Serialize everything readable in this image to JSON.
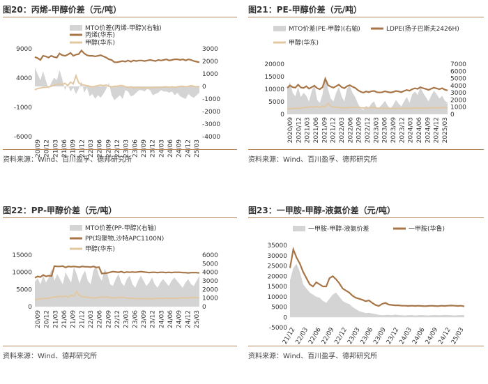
{
  "colors": {
    "bar": "#d4d4d4",
    "brown": "#a87547",
    "tan": "#e2c8a2",
    "rule": "#b5865a"
  },
  "chart_data": [
    {
      "type": "line",
      "title": "图20：丙烯-甲醇价差（元/吨）",
      "source": "资料来源：Wind、百川盈孚、德邦研究所",
      "legend": [
        "MTO价差(丙烯-甲醇)(右轴)",
        "丙烯(华东)",
        "甲醇(华东)"
      ],
      "x_ticks": [
        "20/09",
        "20/12",
        "21/03",
        "21/06",
        "21/09",
        "21/12",
        "22/03",
        "22/06",
        "22/09",
        "22/12",
        "23/03",
        "23/06",
        "23/09",
        "23/12",
        "24/03",
        "24/06",
        "24/09",
        "24/12",
        "25/03"
      ],
      "left_axis": {
        "ticks": [
          "9000",
          "4000",
          "-1000",
          "-6000"
        ],
        "min": -6000,
        "max": 9000
      },
      "right_axis": {
        "ticks": [
          "3000",
          "2000",
          "1000",
          "0",
          "-1000",
          "-2000",
          "-3000",
          "-4000"
        ],
        "min": -4000,
        "max": 3000
      },
      "series": [
        {
          "name": "MTO价差(丙烯-甲醇)(右轴)",
          "type": "area",
          "axis": "right",
          "values": [
            1500,
            1000,
            500,
            1200,
            500,
            -200,
            300,
            700,
            500,
            1300,
            600,
            -300,
            200,
            -400,
            -100,
            -600,
            -200,
            400,
            -500,
            -100,
            -800,
            -600,
            -1000,
            -700,
            -900,
            -600,
            -200,
            300,
            -700,
            -1100,
            -900,
            -700,
            -1000,
            -300,
            -400,
            -800,
            -700,
            -500,
            -300,
            -300,
            -400,
            -200,
            -300,
            -700,
            -600,
            -500,
            -300,
            -400,
            -400,
            -500,
            -400,
            -700,
            -500,
            -800,
            -900,
            -1000,
            -600,
            -800,
            -900,
            -700,
            -500
          ]
        },
        {
          "name": "丙烯(华东)",
          "type": "line",
          "axis": "left",
          "values": [
            7600,
            7400,
            7100,
            7800,
            7700,
            7500,
            7800,
            7600,
            7500,
            8200,
            7900,
            7800,
            8000,
            8300,
            7800,
            8000,
            8100,
            8700,
            8200,
            7900,
            7800,
            7800,
            7700,
            7800,
            7900,
            7700,
            7500,
            7200,
            7100,
            6700,
            6700,
            6800,
            6900,
            6800,
            7000,
            6800,
            7000,
            6900,
            7000,
            7000,
            6900,
            7000,
            7100,
            7000,
            6900,
            7100,
            7000,
            7100,
            7200,
            7000,
            7100,
            7200,
            7200,
            7100,
            7200,
            7000,
            7200,
            7100,
            6900,
            6800,
            6700
          ]
        },
        {
          "name": "甲醇(华东)",
          "type": "line",
          "axis": "left",
          "values": [
            2000,
            2200,
            2300,
            2400,
            2400,
            2500,
            2600,
            2800,
            2900,
            3000,
            2900,
            3100,
            2700,
            3300,
            3000,
            4400,
            3200,
            2900,
            2800,
            2700,
            2600,
            2500,
            2600,
            2700,
            2800,
            2700,
            2800,
            2600,
            2500,
            2600,
            2600,
            2700,
            2700,
            2500,
            2400,
            2500,
            2300,
            2400,
            2400,
            2300,
            2400,
            2300,
            2300,
            2400,
            2400,
            2400,
            2400,
            2500,
            2500,
            2400,
            2500,
            2400,
            2500,
            2600,
            2600,
            2500,
            2600,
            2700,
            2600,
            2500,
            2600
          ]
        }
      ]
    },
    {
      "type": "line",
      "title": "图21：PE-甲醇价差（元/吨）",
      "source": "资料来源：Wind、百川盈孚、德邦研究所",
      "legend": [
        "MTO价差(PE-甲醇)(右轴)",
        "LDPE(扬子巴斯夫2426H)",
        "甲醇(华东)"
      ],
      "x_ticks": [
        "2020/09",
        "2020/12",
        "2021/03",
        "2021/06",
        "2021/09",
        "2021/12",
        "2022/03",
        "2022/06",
        "2022/09",
        "2022/12",
        "2023/03",
        "2023/06",
        "2023/09",
        "2023/12",
        "2024/03",
        "2024/06",
        "2024/09",
        "2024/12",
        "2025/03"
      ],
      "left_axis": {
        "ticks": [
          "20000",
          "15000",
          "10000",
          "5000",
          "0"
        ],
        "min": 0,
        "max": 20000
      },
      "right_axis": {
        "ticks": [
          "7000",
          "6000",
          "5000",
          "4000",
          "3000",
          "2000",
          "1000",
          "0"
        ],
        "min": 0,
        "max": 7000
      },
      "series": [
        {
          "name": "MTO价差(PE-甲醇)(右轴)",
          "type": "area",
          "axis": "right",
          "values": [
            3500,
            4500,
            3000,
            2500,
            3800,
            2400,
            3000,
            2600,
            1800,
            3200,
            4200,
            2000,
            1600,
            2800,
            5200,
            3500,
            2200,
            1800,
            3000,
            3800,
            2500,
            1800,
            3600,
            4000,
            3000,
            2400,
            1500,
            800,
            600,
            1200,
            900,
            1500,
            1800,
            800,
            1000,
            1400,
            1900,
            1200,
            800,
            1300,
            2000,
            1500,
            1100,
            1800,
            2400,
            1600,
            2800,
            3200,
            2700,
            3800,
            3000,
            2400,
            1800,
            2600,
            3300,
            2800,
            2200,
            2600,
            1900,
            1600
          ]
        },
        {
          "name": "LDPE(扬子巴斯夫2426H)",
          "type": "line",
          "axis": "left",
          "values": [
            10500,
            11500,
            10800,
            10600,
            11800,
            10700,
            10500,
            11200,
            10200,
            10800,
            11400,
            10400,
            10000,
            10800,
            14200,
            11600,
            11000,
            10600,
            11200,
            11800,
            10800,
            10400,
            11200,
            11600,
            11000,
            10500,
            9600,
            9000,
            8600,
            9100,
            8800,
            9200,
            9300,
            8800,
            8700,
            8800,
            9200,
            8900,
            8700,
            8900,
            9300,
            9100,
            8800,
            9300,
            9700,
            9400,
            10000,
            10400,
            10100,
            10800,
            10400,
            10100,
            9700,
            10200,
            10600,
            10300,
            10000,
            10400,
            9800,
            9500
          ]
        },
        {
          "name": "甲醇(华东)",
          "type": "line",
          "axis": "left",
          "values": [
            2000,
            2200,
            2300,
            2400,
            2400,
            2500,
            2600,
            2800,
            2900,
            3000,
            2900,
            3100,
            2700,
            3300,
            3000,
            4400,
            3200,
            2900,
            2800,
            2700,
            2600,
            2500,
            2600,
            2700,
            2800,
            2700,
            2800,
            2600,
            2500,
            2600,
            2600,
            2700,
            2700,
            2500,
            2400,
            2500,
            2300,
            2400,
            2400,
            2300,
            2400,
            2300,
            2300,
            2400,
            2400,
            2400,
            2400,
            2500,
            2500,
            2400,
            2500,
            2400,
            2500,
            2600,
            2600,
            2500,
            2600,
            2700,
            2600,
            2500
          ]
        }
      ]
    },
    {
      "type": "line",
      "title": "图22：PP-甲醇价差（元/吨）",
      "source": "资料来源：Wind、德邦研究所",
      "legend": [
        "MTO价差(PP-甲醇)(右轴)",
        "PP(均聚物,沙特APC1100N)",
        "甲醇(华东)"
      ],
      "x_ticks": [
        "20/09",
        "20/12",
        "21/03",
        "21/06",
        "21/09",
        "21/12",
        "22/03",
        "22/06",
        "22/09",
        "22/12",
        "23/03",
        "23/06",
        "23/09",
        "23/12",
        "24/03",
        "24/06",
        "24/09",
        "24/12",
        "25/03"
      ],
      "left_axis": {
        "ticks": [
          "15000",
          "10000",
          "5000",
          "0"
        ],
        "min": 0,
        "max": 15000
      },
      "right_axis": {
        "ticks": [
          "6000",
          "5000",
          "4000",
          "3000",
          "2000",
          "1000",
          "0"
        ],
        "min": 0,
        "max": 6000
      },
      "series": [
        {
          "name": "MTO价差(PP-甲醇)(右轴)",
          "type": "area",
          "axis": "right",
          "values": [
            2900,
            3300,
            2600,
            3600,
            2800,
            3400,
            4400,
            3000,
            3800,
            3200,
            2600,
            4000,
            3400,
            2800,
            4600,
            3800,
            2700,
            3600,
            4200,
            3000,
            2600,
            4200,
            4800,
            3600,
            3000,
            4400,
            3800,
            2600,
            2400,
            3200,
            3800,
            2800,
            2400,
            3200,
            3600,
            2600,
            2200,
            3000,
            3600,
            3000,
            2400,
            2800,
            3400,
            2600,
            2200,
            2800,
            3200,
            2800,
            2400,
            3000,
            3400,
            3000,
            2600,
            2200,
            2800,
            3200,
            2600,
            2400,
            3000,
            3600
          ]
        },
        {
          "name": "PP(均聚物,沙特APC1100N)",
          "type": "line",
          "axis": "left",
          "values": [
            8400,
            8800,
            8600,
            9200,
            8800,
            9000,
            8900,
            11800,
            11700,
            11700,
            11800,
            11400,
            11700,
            11600,
            11700,
            11600,
            11500,
            11700,
            11600,
            11600,
            11500,
            11700,
            11400,
            11500,
            9600,
            9700,
            9800,
            10000,
            10200,
            10100,
            10000,
            10200,
            9900,
            10100,
            10000,
            10100,
            10000,
            10100,
            10200,
            10100,
            10000,
            9900,
            10000,
            10000,
            9900,
            10000,
            10000,
            9900,
            10000,
            9900,
            10000,
            10000,
            10000,
            9900,
            9900,
            9800,
            9900,
            9900,
            9900,
            9800
          ]
        },
        {
          "name": "甲醇(华东)",
          "type": "line",
          "axis": "left",
          "values": [
            2000,
            2200,
            2300,
            2400,
            2400,
            2500,
            2600,
            2800,
            2900,
            3000,
            2900,
            3100,
            2700,
            3300,
            3000,
            4400,
            3200,
            2900,
            2800,
            2700,
            2600,
            2500,
            2600,
            2700,
            2800,
            2700,
            2800,
            2600,
            2500,
            2600,
            2600,
            2700,
            2700,
            2500,
            2400,
            2500,
            2300,
            2400,
            2400,
            2300,
            2400,
            2300,
            2300,
            2400,
            2400,
            2400,
            2400,
            2500,
            2500,
            2400,
            2500,
            2400,
            2500,
            2600,
            2600,
            2500,
            2600,
            2700,
            2600,
            2500
          ]
        }
      ]
    },
    {
      "type": "line",
      "title": "图23：一甲胺-甲醇-液氨价差（元/吨）",
      "source": "资料来源：Wind、百川盈孚、德邦研究所",
      "legend": [
        "一甲胺-甲醇-液氨价差",
        "一甲胺(华鲁)"
      ],
      "x_ticks": [
        "21/12",
        "22/03",
        "22/06",
        "22/09",
        "22/12",
        "23/03",
        "23/06",
        "23/09",
        "23/12",
        "24/03",
        "24/06",
        "24/09",
        "24/12",
        "25/03"
      ],
      "left_axis": {
        "ticks": [
          "35000",
          "30000",
          "25000",
          "20000",
          "15000",
          "10000",
          "5000",
          "0",
          "-5000"
        ],
        "min": -5000,
        "max": 35000
      },
      "series": [
        {
          "name": "一甲胺-甲醇-液氨价差",
          "type": "area",
          "axis": "left",
          "values": [
            18000,
            24000,
            26000,
            22000,
            16000,
            14000,
            12000,
            11000,
            10000,
            9500,
            8000,
            7000,
            9000,
            11000,
            12000,
            10000,
            8000,
            7000,
            6500,
            5000,
            4000,
            3000,
            2500,
            2000,
            2200,
            1800,
            1500,
            1200,
            1000,
            1100,
            1200,
            1000,
            1300,
            1100,
            1000,
            900,
            1000,
            1100,
            900,
            1000,
            1100,
            1000,
            900,
            1000,
            1100,
            1000,
            1000,
            1200,
            1100,
            1000,
            900,
            1000,
            1100,
            1000
          ]
        },
        {
          "name": "一甲胺(华鲁)",
          "type": "line",
          "axis": "left",
          "values": [
            24000,
            33000,
            29000,
            26000,
            22000,
            19000,
            16000,
            15000,
            17000,
            16000,
            15000,
            15000,
            19000,
            20000,
            18500,
            16500,
            14000,
            13000,
            12000,
            10500,
            9500,
            9000,
            8500,
            7800,
            8200,
            7000,
            6000,
            5500,
            6500,
            7000,
            6200,
            6000,
            5800,
            5800,
            5600,
            5600,
            5500,
            5600,
            5500,
            5600,
            5500,
            5400,
            5500,
            5600,
            5500,
            5400,
            5600,
            5500,
            5600,
            5700,
            5600,
            5500,
            5600,
            5300
          ]
        }
      ]
    }
  ]
}
